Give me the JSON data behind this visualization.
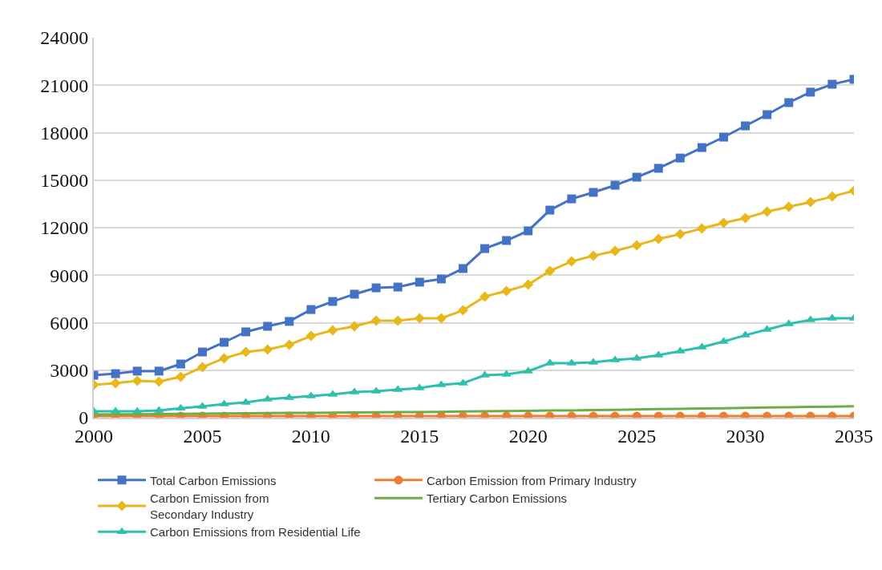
{
  "chart_data": {
    "type": "line",
    "x": [
      2000,
      2001,
      2002,
      2003,
      2004,
      2005,
      2006,
      2007,
      2008,
      2009,
      2010,
      2011,
      2012,
      2013,
      2014,
      2015,
      2016,
      2017,
      2018,
      2019,
      2020,
      2021,
      2022,
      2023,
      2024,
      2025,
      2026,
      2027,
      2028,
      2029,
      2030,
      2031,
      2032,
      2033,
      2034,
      2035
    ],
    "xlim": [
      2000,
      2035
    ],
    "xticks": [
      2000,
      2005,
      2010,
      2015,
      2020,
      2025,
      2030,
      2035
    ],
    "ylim": [
      0,
      24000
    ],
    "yticks": [
      0,
      3000,
      6000,
      9000,
      12000,
      15000,
      18000,
      21000,
      24000
    ],
    "grid": "y",
    "legend": "bottom",
    "series": [
      {
        "name": "Total Carbon Emissions",
        "color": "#4472c4",
        "marker": "square",
        "values": [
          2680,
          2780,
          2940,
          2940,
          3390,
          4150,
          4760,
          5420,
          5770,
          6080,
          6830,
          7340,
          7800,
          8200,
          8250,
          8560,
          8760,
          9420,
          10680,
          11190,
          11800,
          13110,
          13820,
          14230,
          14680,
          15190,
          15750,
          16400,
          17060,
          17720,
          18430,
          19140,
          19900,
          20560,
          21060,
          21370
        ]
      },
      {
        "name": "Carbon Emission from Primary Industry",
        "color": "#ed7d31",
        "marker": "circle",
        "values": [
          100,
          100,
          100,
          100,
          100,
          100,
          100,
          100,
          100,
          100,
          100,
          100,
          100,
          100,
          100,
          100,
          100,
          100,
          100,
          100,
          100,
          100,
          100,
          100,
          100,
          100,
          100,
          100,
          100,
          100,
          100,
          100,
          100,
          100,
          100,
          100
        ]
      },
      {
        "name": "Carbon Emission from Secondary Industry",
        "color": "#e8b71a",
        "marker": "diamond",
        "values": [
          2080,
          2180,
          2330,
          2280,
          2580,
          3190,
          3750,
          4150,
          4300,
          4610,
          5160,
          5520,
          5770,
          6130,
          6130,
          6280,
          6280,
          6780,
          7650,
          8000,
          8400,
          9270,
          9870,
          10230,
          10530,
          10890,
          11290,
          11590,
          11950,
          12300,
          12610,
          13010,
          13320,
          13620,
          13970,
          14330
        ]
      },
      {
        "name": "Tertiary Carbon Emissions",
        "color": "#70ad47",
        "marker": "none",
        "values": [
          200,
          210,
          220,
          230,
          240,
          250,
          260,
          280,
          290,
          300,
          310,
          320,
          330,
          340,
          350,
          360,
          370,
          390,
          400,
          420,
          430,
          450,
          460,
          480,
          500,
          520,
          540,
          560,
          580,
          600,
          620,
          640,
          660,
          680,
          700,
          720
        ]
      },
      {
        "name": "Carbon Emissions from Residential Life",
        "color": "#2ebfae",
        "marker": "triangle",
        "values": [
          400,
          400,
          400,
          460,
          600,
          710,
          860,
          960,
          1160,
          1270,
          1370,
          1470,
          1620,
          1670,
          1770,
          1870,
          2080,
          2180,
          2680,
          2730,
          2940,
          3440,
          3440,
          3490,
          3650,
          3750,
          3950,
          4200,
          4460,
          4810,
          5210,
          5570,
          5920,
          6180,
          6280,
          6280
        ]
      }
    ]
  }
}
